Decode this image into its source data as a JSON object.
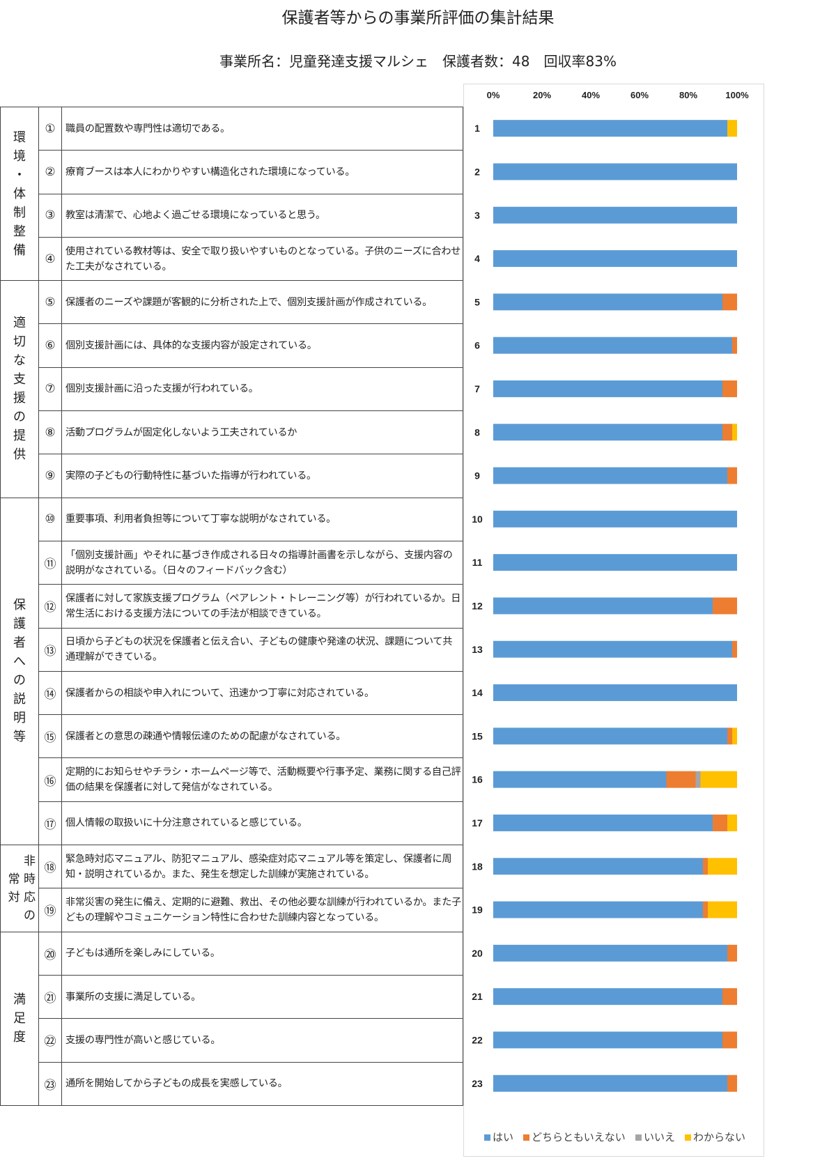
{
  "title": "保護者等からの事業所評価の集計結果",
  "subtitle": "事業所名：児童発達支援マルシェ　保護者数：48　回収率83%",
  "categories": [
    {
      "label": "環\n境\n・\n体\n制\n整\n備",
      "rows": 4
    },
    {
      "label": "適\n切\nな\n支\n援\nの\n提\n供",
      "rows": 5
    },
    {
      "label": "保\n護\n者\nへ\nの\n説\n明\n等",
      "rows": 8
    },
    {
      "label": "非\n常 時\n対 応\nの",
      "rows": 2
    },
    {
      "label": "満\n足\n度",
      "rows": 4
    }
  ],
  "questions": [
    {
      "num": "①",
      "text": "職員の配置数や専門性は適切である。"
    },
    {
      "num": "②",
      "text": "療育ブースは本人にわかりやすい構造化された環境になっている。"
    },
    {
      "num": "③",
      "text": "教室は清潔で、心地よく過ごせる環境になっていると思う。"
    },
    {
      "num": "④",
      "text": "使用されている教材等は、安全で取り扱いやすいものとなっている。子供のニーズに合わせた工夫がなされている。"
    },
    {
      "num": "⑤",
      "text": "保護者のニーズや課題が客観的に分析された上で、個別支援計画が作成されている。"
    },
    {
      "num": "⑥",
      "text": "個別支援計画には、具体的な支援内容が設定されている。"
    },
    {
      "num": "⑦",
      "text": "個別支援計画に沿った支援が行われている。"
    },
    {
      "num": "⑧",
      "text": "活動プログラムが固定化しないよう工夫されているか"
    },
    {
      "num": "⑨",
      "text": "実際の子どもの行動特性に基づいた指導が行われている。"
    },
    {
      "num": "⑩",
      "text": "重要事項、利用者負担等について丁寧な説明がなされている。"
    },
    {
      "num": "⑪",
      "text": "「個別支援計画」やそれに基づき作成される日々の指導計画書を示しながら、支援内容の説明がなされている。（日々のフィードバック含む）"
    },
    {
      "num": "⑫",
      "text": "保護者に対して家族支援プログラム（ペアレント・トレーニング等）が行われているか。日常生活における支援方法についての手法が相談できている。"
    },
    {
      "num": "⑬",
      "text": "日頃から子どもの状況を保護者と伝え合い、子どもの健康や発達の状況、課題について共通理解ができている。"
    },
    {
      "num": "⑭",
      "text": "保護者からの相談や申入れについて、迅速かつ丁寧に対応されている。"
    },
    {
      "num": "⑮",
      "text": "保護者との意思の疎通や情報伝達のための配慮がなされている。"
    },
    {
      "num": "⑯",
      "text": "定期的にお知らせやチラシ・ホームページ等で、活動概要や行事予定、業務に関する自己評価の結果を保護者に対して発信がなされている。"
    },
    {
      "num": "⑰",
      "text": "個人情報の取扱いに十分注意されていると感じている。"
    },
    {
      "num": "⑱",
      "text": "緊急時対応マニュアル、防犯マニュアル、感染症対応マニュアル等を策定し、保護者に周知・説明されているか。また、発生を想定した訓練が実施されている。"
    },
    {
      "num": "⑲",
      "text": "非常災害の発生に備え、定期的に避難、救出、その他必要な訓練が行われているか。また子どもの理解やコミュニケーション特性に合わせた訓練内容となっている。"
    },
    {
      "num": "⑳",
      "text": "子どもは通所を楽しみにしている。"
    },
    {
      "num": "㉑",
      "text": "事業所の支援に満足している。"
    },
    {
      "num": "㉒",
      "text": "支援の専門性が高いと感じている。"
    },
    {
      "num": "㉓",
      "text": "通所を開始してから子どもの成長を実感している。"
    }
  ],
  "chart_data": {
    "type": "bar",
    "orientation": "horizontal",
    "stacked": "percent",
    "categories": [
      "1",
      "2",
      "3",
      "4",
      "5",
      "6",
      "7",
      "8",
      "9",
      "10",
      "11",
      "12",
      "13",
      "14",
      "15",
      "16",
      "17",
      "18",
      "19",
      "20",
      "21",
      "22",
      "23"
    ],
    "x_ticks": [
      "0%",
      "20%",
      "40%",
      "60%",
      "80%",
      "100%"
    ],
    "xlim": [
      0,
      100
    ],
    "legend_position": "bottom",
    "series": [
      {
        "name": "はい",
        "color": "#5B9BD5",
        "values": [
          96,
          100,
          100,
          100,
          94,
          98,
          94,
          94,
          96,
          100,
          100,
          90,
          98,
          100,
          96,
          71,
          90,
          86,
          86,
          96,
          94,
          94,
          96
        ]
      },
      {
        "name": "どちらともいえない",
        "color": "#ED7D31",
        "values": [
          0,
          0,
          0,
          0,
          6,
          2,
          6,
          4,
          4,
          0,
          0,
          10,
          2,
          0,
          2,
          12,
          6,
          2,
          2,
          4,
          6,
          6,
          4
        ]
      },
      {
        "name": "いいえ",
        "color": "#A5A5A5",
        "values": [
          0,
          0,
          0,
          0,
          0,
          0,
          0,
          0,
          0,
          0,
          0,
          0,
          0,
          0,
          0,
          2,
          0,
          0,
          0,
          0,
          0,
          0,
          0
        ]
      },
      {
        "name": "わからない",
        "color": "#FFC000",
        "values": [
          4,
          0,
          0,
          0,
          0,
          0,
          0,
          2,
          0,
          0,
          0,
          0,
          0,
          0,
          2,
          15,
          4,
          12,
          12,
          0,
          0,
          0,
          0
        ]
      }
    ]
  }
}
